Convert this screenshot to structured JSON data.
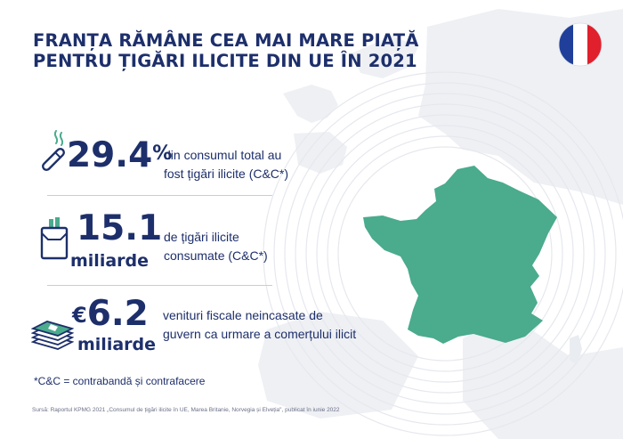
{
  "title": {
    "line1": "FRANȚA RĂMÂNE CEA MAI MARE PIAȚĂ",
    "line2": "PENTRU ȚIGĂRI ILICITE DIN UE ÎN 2021"
  },
  "flag": {
    "colors": [
      "#1f3f9a",
      "#ffffff",
      "#e0202c"
    ]
  },
  "map_color": "#4aab8d",
  "stats": [
    {
      "value": "29.4",
      "suffix": "%",
      "icon": "cigarette-icon",
      "desc_line1": "din consumul total au",
      "desc_line2": "fost țigări ilicite (C&C*)"
    },
    {
      "value": "15.1",
      "unit": "miliarde",
      "icon": "cigarette-pack-icon",
      "desc_line1": "de țigări ilicite",
      "desc_line2": "consumate (C&C*)"
    },
    {
      "prefix": "€",
      "value": "6.2",
      "unit": "miliarde",
      "icon": "money-stack-icon",
      "desc_line1": "venituri fiscale neincasate de",
      "desc_line2": "guvern ca urmare a comerțului ilicit"
    }
  ],
  "footnote": "*C&C = contrabandă și contrafacere",
  "source": "Sursă: Raportul KPMG 2021 „Consumul de țigări ilicite în UE, Marea Britanie, Norvegia și Elveția\", publicat în iunie 2022"
}
